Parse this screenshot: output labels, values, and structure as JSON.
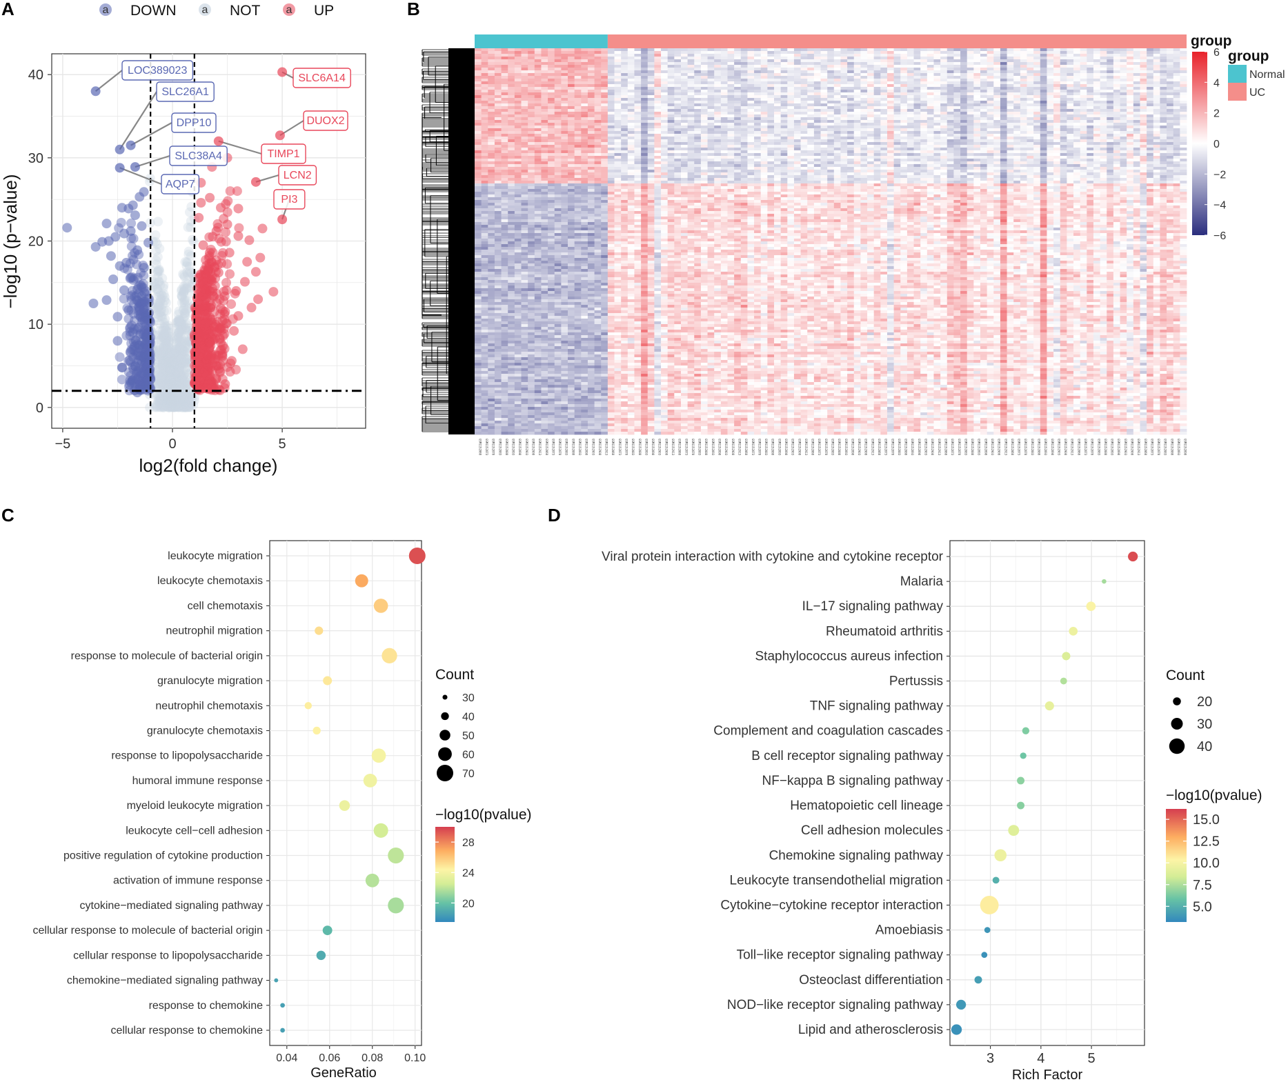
{
  "panels": {
    "a": "A",
    "b": "B",
    "c": "C",
    "d": "D"
  },
  "colors": {
    "down": "#5a68b3",
    "up": "#e8475a",
    "not": "#ccd7e2",
    "normal": "#4cc4cf",
    "uc": "#f48e8a",
    "heat_low": "#2b2e7e",
    "heat_high": "#e8222a"
  },
  "chart_data": [
    {
      "id": "volcano",
      "type": "scatter",
      "title": "",
      "xlabel": "log2(fold change)",
      "ylabel": "−log10 (p−value)",
      "xlim": [
        -5.5,
        8.8
      ],
      "ylim": [
        -2.5,
        42.5
      ],
      "xticks": [
        -5,
        0,
        5
      ],
      "xtick_labels": [
        "−5",
        "0",
        "5"
      ],
      "yticks": [
        0,
        10,
        20,
        30,
        40
      ],
      "ytick_labels": [
        "0",
        "10",
        "20",
        "30",
        "40"
      ],
      "fc_threshold": 1,
      "p_threshold": 2,
      "legend": {
        "symbol": "a",
        "items": [
          "DOWN",
          "NOT",
          "UP"
        ]
      },
      "labeled_points": [
        {
          "gene": "LOC389023",
          "x": -3.5,
          "y": 38.0,
          "group": "DOWN"
        },
        {
          "gene": "SLC26A1",
          "x": -2.4,
          "y": 31.0,
          "group": "DOWN"
        },
        {
          "gene": "DPP10",
          "x": -1.9,
          "y": 31.5,
          "group": "DOWN"
        },
        {
          "gene": "SLC38A4",
          "x": -1.7,
          "y": 28.9,
          "group": "DOWN"
        },
        {
          "gene": "AQP7",
          "x": -2.4,
          "y": 28.8,
          "group": "DOWN"
        },
        {
          "gene": "SLC6A14",
          "x": 5.0,
          "y": 40.3,
          "group": "UP"
        },
        {
          "gene": "DUOX2",
          "x": 4.9,
          "y": 32.7,
          "group": "UP"
        },
        {
          "gene": "TIMP1",
          "x": 2.1,
          "y": 32.0,
          "group": "UP"
        },
        {
          "gene": "LCN2",
          "x": 3.8,
          "y": 27.1,
          "group": "UP"
        },
        {
          "gene": "PI3",
          "x": 5.0,
          "y": 22.6,
          "group": "UP"
        }
      ],
      "down_points": [
        [
          -4.8,
          21.6
        ],
        [
          -3.0,
          22.1
        ],
        [
          -3.2,
          19.9
        ],
        [
          -3.5,
          19.3
        ],
        [
          -2.9,
          20.0
        ],
        [
          -2.6,
          20.5
        ],
        [
          -2.2,
          20.9
        ],
        [
          -2.0,
          23.9
        ],
        [
          -1.8,
          24.3
        ],
        [
          -2.3,
          24.0
        ],
        [
          -1.5,
          25.3
        ],
        [
          -1.3,
          25.9
        ],
        [
          -3.0,
          12.9
        ],
        [
          -3.6,
          12.5
        ],
        [
          -2.7,
          15.4
        ],
        [
          -2.5,
          10.9
        ],
        [
          -2.3,
          4.8
        ],
        [
          -2.5,
          8.0
        ],
        [
          -2.1,
          17.4
        ],
        [
          -1.9,
          15.6
        ],
        [
          -1.6,
          18.9
        ],
        [
          -1.4,
          13.4
        ],
        [
          -1.2,
          11.0
        ],
        [
          -1.8,
          9.0
        ],
        [
          -1.5,
          7.5
        ],
        [
          -1.3,
          6.0
        ],
        [
          -1.7,
          5.0
        ],
        [
          -1.9,
          3.0
        ],
        [
          -1.6,
          1.8
        ],
        [
          -1.2,
          2.6
        ],
        [
          -2.0,
          11.7
        ],
        [
          -1.6,
          14.2
        ],
        [
          -1.3,
          16.8
        ],
        [
          -1.1,
          19.8
        ],
        [
          -1.4,
          21.8
        ],
        [
          -2.4,
          17.0
        ],
        [
          -2.8,
          18.2
        ],
        [
          -1.7,
          23.1
        ],
        [
          -1.2,
          8.4
        ],
        [
          -1.1,
          4.1
        ],
        [
          -2.2,
          14.1
        ],
        [
          -1.9,
          21.2
        ]
      ],
      "up_points": [
        [
          2.5,
          30.0
        ],
        [
          1.8,
          28.9
        ],
        [
          1.3,
          27.0
        ],
        [
          1.7,
          25.2
        ],
        [
          2.2,
          24.0
        ],
        [
          3.0,
          23.9
        ],
        [
          4.1,
          21.5
        ],
        [
          3.5,
          20.1
        ],
        [
          3.0,
          20.6
        ],
        [
          2.6,
          18.6
        ],
        [
          4.0,
          18.0
        ],
        [
          3.8,
          16.3
        ],
        [
          4.6,
          13.9
        ],
        [
          3.3,
          15.1
        ],
        [
          2.9,
          14.0
        ],
        [
          2.4,
          11.5
        ],
        [
          1.9,
          9.7
        ],
        [
          2.3,
          7.4
        ],
        [
          2.7,
          5.6
        ],
        [
          1.8,
          4.4
        ],
        [
          2.4,
          2.8
        ],
        [
          1.4,
          2.3
        ],
        [
          1.6,
          6.3
        ],
        [
          1.2,
          8.9
        ],
        [
          1.5,
          12.2
        ],
        [
          1.2,
          15.6
        ],
        [
          1.8,
          17.4
        ],
        [
          1.4,
          19.5
        ],
        [
          2.0,
          21.2
        ],
        [
          1.2,
          22.8
        ],
        [
          3.0,
          11.0
        ],
        [
          3.6,
          12.0
        ],
        [
          2.8,
          9.2
        ],
        [
          3.2,
          7.0
        ],
        [
          1.7,
          14.0
        ],
        [
          2.1,
          16.2
        ],
        [
          2.5,
          22.0
        ],
        [
          3.4,
          17.5
        ],
        [
          1.1,
          11.7
        ],
        [
          2.0,
          3.5
        ],
        [
          1.3,
          24.6
        ],
        [
          3.9,
          13.0
        ]
      ]
    },
    {
      "id": "heatmap",
      "type": "heatmap",
      "legend_title": "group",
      "annotation_title": "group",
      "groups": [
        {
          "name": "Normal",
          "samples": 20
        },
        {
          "name": "UC",
          "samples": 87
        }
      ],
      "color_scale": {
        "min": -6,
        "max": 6,
        "ticks": [
          6,
          4,
          2,
          0,
          -2,
          -4,
          -6
        ],
        "tick_labels": [
          "6",
          "4",
          "2",
          "0",
          "−2",
          "−4",
          "−6"
        ]
      },
      "gene_blocks": [
        {
          "direction": "down_in_UC",
          "share": 0.35
        },
        {
          "direction": "up_in_UC",
          "share": 0.65
        }
      ],
      "sample_ids": [
        "GSM1152868",
        "GSM1152873",
        "GSM1152878",
        "GSM1152883",
        "GSM1152888",
        "GSM1152893",
        "GSM1152898",
        "GSM1152903",
        "GSM1152908",
        "GSM1152913"
      ]
    },
    {
      "id": "go_dotplot",
      "type": "scatter",
      "xlabel": "GeneRatio",
      "xlim": [
        0.032,
        0.103
      ],
      "xticks": [
        0.04,
        0.06,
        0.08,
        0.1
      ],
      "xtick_labels": [
        "0.04",
        "0.06",
        "0.08",
        "0.10"
      ],
      "size_legend": {
        "title": "Count",
        "values": [
          30,
          40,
          50,
          60,
          70
        ]
      },
      "color_legend": {
        "title": "−log10(pvalue)",
        "min": 17.5,
        "max": 30,
        "ticks": [
          20,
          24,
          28
        ],
        "tick_labels": [
          "20",
          "24",
          "28"
        ]
      },
      "categories": [
        "leukocyte migration",
        "leukocyte chemotaxis",
        "cell chemotaxis",
        "neutrophil migration",
        "response to molecule of bacterial origin",
        "granulocyte migration",
        "neutrophil chemotaxis",
        "granulocyte chemotaxis",
        "response to lipopolysaccharide",
        "humoral immune response",
        "myeloid leukocyte migration",
        "leukocyte cell−cell adhesion",
        "positive regulation of cytokine production",
        "activation of immune response",
        "cytokine−mediated signaling pathway",
        "cellular response to molecule of bacterial origin",
        "cellular response to lipopolysaccharide",
        "chemokine−mediated signaling pathway",
        "response to chemokine",
        "cellular response to chemokine"
      ],
      "gene_ratio": [
        0.101,
        0.075,
        0.084,
        0.055,
        0.088,
        0.059,
        0.05,
        0.054,
        0.083,
        0.079,
        0.067,
        0.084,
        0.091,
        0.08,
        0.091,
        0.059,
        0.056,
        0.035,
        0.038,
        0.038
      ],
      "count": [
        70,
        58,
        62,
        42,
        66,
        44,
        38,
        40,
        62,
        60,
        50,
        63,
        68,
        60,
        68,
        46,
        45,
        27,
        29,
        29
      ],
      "neg_log10_p": [
        29.5,
        27.0,
        25.8,
        25.2,
        25.0,
        24.8,
        24.6,
        24.5,
        24.0,
        23.8,
        23.6,
        22.5,
        22.0,
        21.8,
        21.5,
        19.6,
        19.0,
        18.6,
        18.5,
        18.5
      ]
    },
    {
      "id": "kegg_dotplot",
      "type": "scatter",
      "xlabel": "Rich Factor",
      "xlim": [
        2.2,
        6.05
      ],
      "xticks": [
        3,
        4,
        5
      ],
      "xtick_labels": [
        "3",
        "4",
        "5"
      ],
      "size_legend": {
        "title": "Count",
        "values": [
          20,
          30,
          40
        ]
      },
      "color_legend": {
        "title": "−log10(pvalue)",
        "min": 3.2,
        "max": 16.2,
        "ticks": [
          5.0,
          7.5,
          10.0,
          12.5,
          15.0
        ],
        "tick_labels": [
          "5.0",
          "7.5",
          "10.0",
          "12.5",
          "15.0"
        ]
      },
      "categories": [
        "Viral protein interaction with cytokine and cytokine receptor",
        "Malaria",
        "IL−17 signaling pathway",
        "Rheumatoid arthritis",
        "Staphylococcus aureus infection",
        "Pertussis",
        "TNF signaling pathway",
        "Complement and coagulation cascades",
        "B cell receptor signaling pathway",
        "NF−kappa B signaling pathway",
        "Hematopoietic cell lineage",
        "Cell adhesion molecules",
        "Chemokine signaling pathway",
        "Leukocyte transendothelial migration",
        "Cytokine−cytokine receptor interaction",
        "Amoebiasis",
        "Toll−like receptor signaling pathway",
        "Osteoclast differentiation",
        "NOD−like receptor signaling pathway",
        "Lipid and atherosclerosis"
      ],
      "rich_factor": [
        5.82,
        5.25,
        4.99,
        4.64,
        4.5,
        4.45,
        4.17,
        3.7,
        3.65,
        3.6,
        3.6,
        3.46,
        3.2,
        3.11,
        2.98,
        2.94,
        2.88,
        2.76,
        2.42,
        2.33
      ],
      "count": [
        25,
        11,
        24,
        22,
        21,
        17,
        23,
        18,
        16,
        19,
        19,
        28,
        31,
        17,
        48,
        15,
        15,
        19,
        25,
        27
      ],
      "neg_log10_p": [
        15.8,
        7.3,
        10.2,
        9.6,
        8.8,
        7.6,
        9.3,
        6.4,
        6.0,
        6.7,
        6.6,
        8.9,
        9.6,
        5.0,
        10.6,
        3.8,
        3.6,
        4.2,
        3.9,
        3.6
      ]
    }
  ]
}
